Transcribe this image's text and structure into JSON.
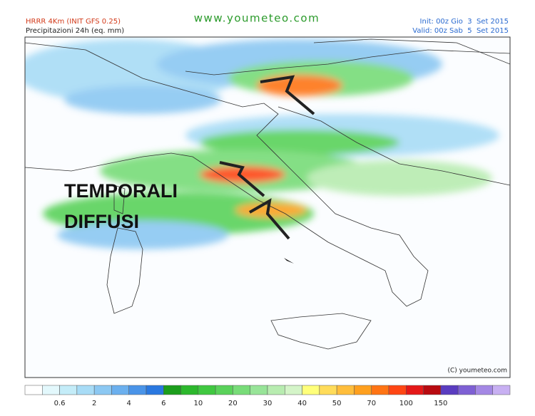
{
  "header": {
    "model": "HRRR 4Km (INIT GFS 0.25)",
    "field": "Precipitazioni 24h (eq. mm)",
    "site": "www.youmeteo.com",
    "init": "Init: 00z Gio  3  Set 2015",
    "valid": "Valid: 00z Sab  5  Set 2015"
  },
  "annotation": {
    "line1": "TEMPORALI",
    "line2": "DIFFUSI"
  },
  "copyright": "(C) youmeteo.com",
  "legend": {
    "colors": [
      "#ffffff",
      "#e3f8fc",
      "#c4ecf8",
      "#a8dcf6",
      "#8cc8f2",
      "#6cb0ee",
      "#4a94e8",
      "#2a78e0",
      "#1c9e1c",
      "#2cb82c",
      "#40c840",
      "#5ad25a",
      "#78dc78",
      "#98e498",
      "#b8ecb0",
      "#d4f4c8",
      "#ffff7a",
      "#ffdc5a",
      "#ffbe3c",
      "#ffa01e",
      "#ff7414",
      "#ff4614",
      "#e41818",
      "#b80a10",
      "#5a3cc0",
      "#7e60d4",
      "#a488e4",
      "#c8b0f2"
    ],
    "labels": [
      "0.6",
      "2",
      "4",
      "6",
      "10",
      "20",
      "30",
      "40",
      "50",
      "70",
      "100",
      "150"
    ]
  }
}
